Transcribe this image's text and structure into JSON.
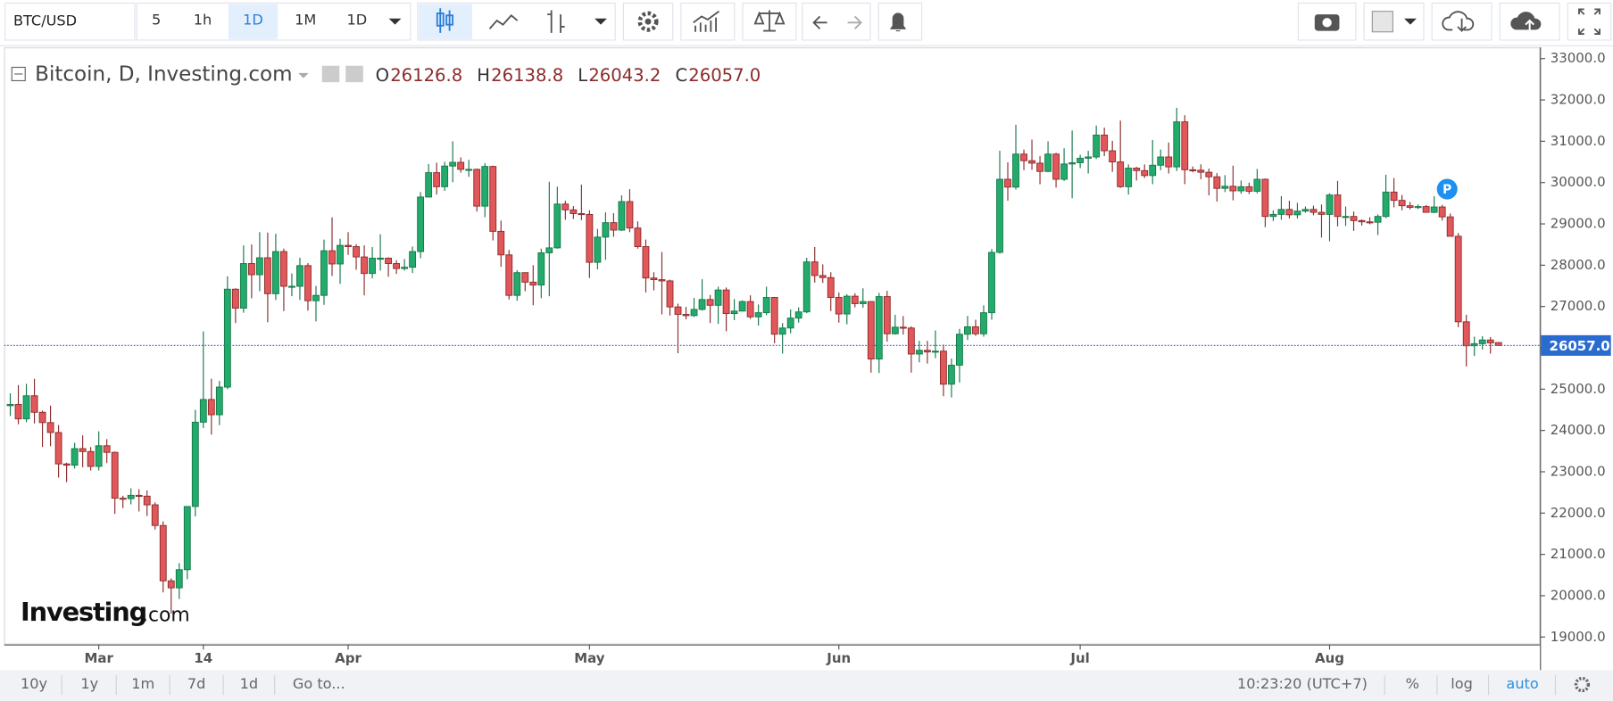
{
  "toolbar": {
    "symbol": "BTC/USD",
    "intervals": [
      "5",
      "1h",
      "1D",
      "1M",
      "1D"
    ]
  },
  "bottom_bar": {
    "ranges": [
      "10y",
      "1y",
      "1m",
      "7d",
      "1d"
    ],
    "goto": "Go to...",
    "time": "10:23:20 (UTC+7)",
    "percent": "%",
    "log": "log",
    "auto": "auto"
  },
  "chart_data": {
    "type": "candlestick",
    "title": "Bitcoin, D, Investing.com",
    "logo": {
      "brand": "Investing",
      "suffix": ".com"
    },
    "ohlc_readout": [
      {
        "letter": "O",
        "value": "26126.8"
      },
      {
        "letter": "H",
        "value": "26138.8"
      },
      {
        "letter": "L",
        "value": "26043.2"
      },
      {
        "letter": "C",
        "value": "26057.0"
      }
    ],
    "annotation": "P",
    "up_color": "#22ab6b",
    "down_color": "#e2585a",
    "up_border": "#17784a",
    "down_border": "#8c2b2b",
    "ylim": [
      18820,
      33250
    ],
    "yticks": [
      {
        "value": 19000,
        "label": "19000.0"
      },
      {
        "value": 20000,
        "label": "20000.0"
      },
      {
        "value": 21000,
        "label": "21000.0"
      },
      {
        "value": 22000,
        "label": "22000.0"
      },
      {
        "value": 23000,
        "label": "23000.0"
      },
      {
        "value": 24000,
        "label": "24000.0"
      },
      {
        "value": 25000,
        "label": "25000.0"
      },
      {
        "value": 26000,
        "label": "26000.0"
      },
      {
        "value": 27000,
        "label": "27000.0"
      },
      {
        "value": 28000,
        "label": "28000.0"
      },
      {
        "value": 29000,
        "label": "29000.0"
      },
      {
        "value": 30000,
        "label": "30000.0"
      },
      {
        "value": 31000,
        "label": "31000.0"
      },
      {
        "value": 32000,
        "label": "32000.0"
      },
      {
        "value": 33000,
        "label": "33000.0"
      }
    ],
    "last_price": {
      "value": 26057,
      "label": "26057.0"
    },
    "xticks": [
      {
        "value": 11,
        "label": "Mar"
      },
      {
        "value": 24,
        "label": "14"
      },
      {
        "value": 42,
        "label": "Apr"
      },
      {
        "value": 72,
        "label": "May"
      },
      {
        "value": 103,
        "label": "Jun"
      },
      {
        "value": 133,
        "label": "Jul"
      },
      {
        "value": 164,
        "label": "Aug"
      }
    ],
    "ohlc": [
      [
        24600,
        24900,
        24350,
        24630
      ],
      [
        24630,
        25100,
        24150,
        24280
      ],
      [
        24280,
        25130,
        24200,
        24840
      ],
      [
        24840,
        25250,
        24170,
        24440
      ],
      [
        24440,
        24480,
        23600,
        24190
      ],
      [
        24190,
        24600,
        23620,
        23950
      ],
      [
        23950,
        24130,
        22860,
        23190
      ],
      [
        23190,
        23220,
        22750,
        23160
      ],
      [
        23160,
        23700,
        23080,
        23560
      ],
      [
        23560,
        23880,
        23110,
        23490
      ],
      [
        23490,
        23600,
        23030,
        23130
      ],
      [
        23130,
        23980,
        23030,
        23630
      ],
      [
        23630,
        23790,
        23210,
        23470
      ],
      [
        23470,
        23490,
        21980,
        22360
      ],
      [
        22360,
        22420,
        22120,
        22350
      ],
      [
        22350,
        22600,
        22210,
        22430
      ],
      [
        22430,
        22580,
        22040,
        22410
      ],
      [
        22410,
        22550,
        21930,
        22200
      ],
      [
        22200,
        22260,
        21600,
        21700
      ],
      [
        21700,
        21800,
        20080,
        20360
      ],
      [
        20360,
        20420,
        19570,
        20190
      ],
      [
        20190,
        20790,
        19920,
        20630
      ],
      [
        20630,
        22160,
        20400,
        22160
      ],
      [
        22160,
        24500,
        21920,
        24200
      ],
      [
        24200,
        26400,
        24060,
        24750
      ],
      [
        24750,
        25250,
        23900,
        24380
      ],
      [
        24380,
        25200,
        24130,
        25050
      ],
      [
        25050,
        27730,
        25000,
        27420
      ],
      [
        27420,
        27440,
        26600,
        26960
      ],
      [
        26960,
        28480,
        26850,
        28040
      ],
      [
        28040,
        28500,
        27200,
        27770
      ],
      [
        27770,
        28800,
        27370,
        28180
      ],
      [
        28180,
        28790,
        26620,
        27310
      ],
      [
        27310,
        28760,
        27160,
        28330
      ],
      [
        28330,
        28400,
        26890,
        27490
      ],
      [
        27490,
        27800,
        27250,
        27490
      ],
      [
        27490,
        28180,
        27160,
        27990
      ],
      [
        27990,
        28050,
        26900,
        27140
      ],
      [
        27140,
        27500,
        26640,
        27270
      ],
      [
        27270,
        28620,
        27040,
        28350
      ],
      [
        28350,
        29160,
        27740,
        28030
      ],
      [
        28030,
        28640,
        27550,
        28480
      ],
      [
        28480,
        28800,
        28250,
        28450
      ],
      [
        28450,
        28510,
        27890,
        28200
      ],
      [
        28200,
        28480,
        27270,
        27800
      ],
      [
        27800,
        28440,
        27680,
        28170
      ],
      [
        28170,
        28750,
        27870,
        28170
      ],
      [
        28170,
        28190,
        27720,
        28040
      ],
      [
        28040,
        28120,
        27790,
        27920
      ],
      [
        27920,
        28150,
        27870,
        27950
      ],
      [
        27950,
        28450,
        27810,
        28330
      ],
      [
        28330,
        29770,
        28170,
        29650
      ],
      [
        29650,
        30450,
        29640,
        30240
      ],
      [
        30240,
        30480,
        29710,
        29900
      ],
      [
        29900,
        30500,
        29800,
        30400
      ],
      [
        30400,
        31000,
        30010,
        30490
      ],
      [
        30490,
        30610,
        30240,
        30320
      ],
      [
        30320,
        30550,
        30140,
        30320
      ],
      [
        30320,
        30340,
        29300,
        29430
      ],
      [
        29430,
        30470,
        29160,
        30390
      ],
      [
        30390,
        30410,
        28600,
        28820
      ],
      [
        28820,
        29080,
        27960,
        28250
      ],
      [
        28250,
        28370,
        27170,
        27270
      ],
      [
        27270,
        27880,
        27140,
        27820
      ],
      [
        27820,
        27820,
        27370,
        27590
      ],
      [
        27590,
        28000,
        27030,
        27520
      ],
      [
        27520,
        28400,
        27200,
        28300
      ],
      [
        28300,
        30020,
        27250,
        28420
      ],
      [
        28420,
        29900,
        28400,
        29480
      ],
      [
        29480,
        29560,
        29100,
        29340
      ],
      [
        29340,
        29430,
        29120,
        29250
      ],
      [
        29250,
        29950,
        29090,
        29230
      ],
      [
        29230,
        29330,
        27690,
        28070
      ],
      [
        28070,
        28880,
        27900,
        28680
      ],
      [
        28680,
        29280,
        28130,
        29030
      ],
      [
        29030,
        29260,
        28690,
        28850
      ],
      [
        28850,
        29690,
        28830,
        29540
      ],
      [
        29540,
        29840,
        28800,
        28900
      ],
      [
        28900,
        29060,
        28400,
        28450
      ],
      [
        28450,
        28620,
        27340,
        27690
      ],
      [
        27690,
        27830,
        27390,
        27650
      ],
      [
        27650,
        28320,
        26810,
        27620
      ],
      [
        27620,
        27650,
        26780,
        26990
      ],
      [
        26990,
        27070,
        25870,
        26810
      ],
      [
        26810,
        26990,
        26690,
        26780
      ],
      [
        26780,
        27210,
        26750,
        26930
      ],
      [
        26930,
        27660,
        26900,
        27170
      ],
      [
        27170,
        27280,
        26600,
        27030
      ],
      [
        27030,
        27480,
        26580,
        27400
      ],
      [
        27400,
        27460,
        26400,
        26830
      ],
      [
        26830,
        27180,
        26670,
        26890
      ],
      [
        26890,
        27150,
        26880,
        27120
      ],
      [
        27120,
        27270,
        26700,
        26750
      ],
      [
        26750,
        27050,
        26540,
        26850
      ],
      [
        26850,
        27480,
        26790,
        27220
      ],
      [
        27220,
        27230,
        26110,
        26330
      ],
      [
        26330,
        26600,
        25860,
        26480
      ],
      [
        26480,
        26930,
        26350,
        26720
      ],
      [
        26720,
        26980,
        26610,
        26870
      ],
      [
        26870,
        28180,
        26840,
        28080
      ],
      [
        28080,
        28440,
        27580,
        27750
      ],
      [
        27750,
        28020,
        27570,
        27700
      ],
      [
        27700,
        27830,
        26890,
        27220
      ],
      [
        27220,
        27340,
        26610,
        26820
      ],
      [
        26820,
        27300,
        26570,
        27250
      ],
      [
        27250,
        27320,
        26980,
        27070
      ],
      [
        27070,
        27440,
        26970,
        27120
      ],
      [
        27120,
        27130,
        25400,
        25730
      ],
      [
        25730,
        27330,
        25390,
        27240
      ],
      [
        27240,
        27380,
        26150,
        26340
      ],
      [
        26340,
        26800,
        26320,
        26500
      ],
      [
        26500,
        26770,
        26320,
        26480
      ],
      [
        26480,
        26520,
        25400,
        25850
      ],
      [
        25850,
        26170,
        25650,
        25940
      ],
      [
        25940,
        26170,
        25620,
        25900
      ],
      [
        25900,
        26420,
        25750,
        25920
      ],
      [
        25920,
        26080,
        24830,
        25120
      ],
      [
        25120,
        25740,
        24800,
        25580
      ],
      [
        25580,
        26460,
        25160,
        26330
      ],
      [
        26330,
        26770,
        26190,
        26510
      ],
      [
        26510,
        26680,
        26290,
        26340
      ],
      [
        26340,
        27030,
        26270,
        26850
      ],
      [
        26850,
        28390,
        26680,
        28310
      ],
      [
        28310,
        30770,
        28280,
        30080
      ],
      [
        30080,
        30490,
        29560,
        29890
      ],
      [
        29890,
        31400,
        29830,
        30690
      ],
      [
        30690,
        30800,
        30300,
        30530
      ],
      [
        30530,
        31040,
        30310,
        30470
      ],
      [
        30470,
        30640,
        29960,
        30270
      ],
      [
        30270,
        31000,
        30250,
        30690
      ],
      [
        30690,
        30720,
        29880,
        30080
      ],
      [
        30080,
        30830,
        30040,
        30450
      ],
      [
        30450,
        31260,
        29620,
        30480
      ],
      [
        30480,
        30670,
        30350,
        30590
      ],
      [
        30590,
        30770,
        30220,
        30620
      ],
      [
        30620,
        31380,
        30570,
        31150
      ],
      [
        31150,
        31330,
        30640,
        30770
      ],
      [
        30770,
        31010,
        30260,
        30500
      ],
      [
        30500,
        31500,
        29870,
        29900
      ],
      [
        29900,
        30440,
        29710,
        30350
      ],
      [
        30350,
        30380,
        30050,
        30290
      ],
      [
        30290,
        30440,
        30110,
        30170
      ],
      [
        30170,
        31030,
        29960,
        30420
      ],
      [
        30420,
        30800,
        30300,
        30620
      ],
      [
        30620,
        30970,
        30220,
        30380
      ],
      [
        30380,
        31810,
        30280,
        31470
      ],
      [
        31470,
        31630,
        29960,
        30310
      ],
      [
        30310,
        30390,
        30250,
        30300
      ],
      [
        30300,
        30440,
        30080,
        30250
      ],
      [
        30250,
        30340,
        29690,
        30140
      ],
      [
        30140,
        30230,
        29540,
        29860
      ],
      [
        29860,
        30180,
        29770,
        29910
      ],
      [
        29910,
        30410,
        29570,
        29800
      ],
      [
        29800,
        30050,
        29730,
        29900
      ],
      [
        29900,
        30000,
        29720,
        29790
      ],
      [
        29790,
        30330,
        29740,
        30080
      ],
      [
        30080,
        30100,
        28920,
        29180
      ],
      [
        29180,
        29330,
        29070,
        29230
      ],
      [
        29230,
        29670,
        29100,
        29350
      ],
      [
        29350,
        29560,
        29130,
        29220
      ],
      [
        29220,
        29510,
        29130,
        29310
      ],
      [
        29310,
        29420,
        29270,
        29350
      ],
      [
        29350,
        29440,
        29210,
        29280
      ],
      [
        29280,
        29470,
        28670,
        29230
      ],
      [
        29230,
        29740,
        28580,
        29700
      ],
      [
        29700,
        30040,
        28940,
        29180
      ],
      [
        29180,
        29420,
        28950,
        29180
      ],
      [
        29180,
        29300,
        28830,
        29080
      ],
      [
        29080,
        29110,
        28960,
        29050
      ],
      [
        29050,
        29160,
        28990,
        29040
      ],
      [
        29040,
        29230,
        28730,
        29180
      ],
      [
        29180,
        30190,
        29140,
        29770
      ],
      [
        29770,
        30110,
        29400,
        29570
      ],
      [
        29570,
        29700,
        29330,
        29440
      ],
      [
        29440,
        29530,
        29350,
        29400
      ],
      [
        29400,
        29470,
        29360,
        29420
      ],
      [
        29420,
        29460,
        29270,
        29280
      ],
      [
        29280,
        29670,
        29260,
        29410
      ],
      [
        29410,
        29460,
        29080,
        29170
      ],
      [
        29170,
        29250,
        28700,
        28700
      ],
      [
        28700,
        28780,
        26500,
        26630
      ],
      [
        26630,
        26800,
        25550,
        26050
      ],
      [
        26050,
        26270,
        25800,
        26100
      ],
      [
        26100,
        26280,
        25960,
        26190
      ],
      [
        26190,
        26260,
        25860,
        26120
      ],
      [
        26126.8,
        26138.8,
        26043.2,
        26057.0
      ]
    ]
  }
}
